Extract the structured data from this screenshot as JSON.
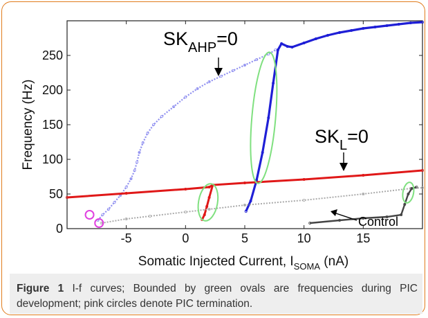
{
  "figure": {
    "label": "Figure 1",
    "caption": "I-f curves; Bounded by green ovals are frequencies during PIC development; pink circles denote PIC termination."
  },
  "chart_data": {
    "type": "scatter",
    "xlabel_main": "Somatic Injected Current, I",
    "xlabel_sub": "SOMA",
    "xlabel_unit": " (nA)",
    "ylabel": "Frequency (Hz)",
    "xlim": [
      -10,
      20
    ],
    "ylim": [
      0,
      300
    ],
    "xticks": [
      "-5",
      "0",
      "5",
      "10",
      "15"
    ],
    "yticks": [
      "0",
      "50",
      "100",
      "150",
      "200",
      "250"
    ],
    "grid": false,
    "annotations": [
      {
        "main": "SK",
        "sub": "AHP",
        "rest": "=0"
      },
      {
        "main": "SK",
        "sub": "L",
        "rest": "=0"
      },
      {
        "main": "Control",
        "sub": "",
        "rest": ""
      }
    ],
    "colors": {
      "ahp": "#1f1fd6",
      "ahp_light": "#8f8ff0",
      "skl": "#e01818",
      "skl_light": "#f2a0a0",
      "control": "#444444",
      "control_light": "#aaaaaa",
      "oval": "#7fe07f",
      "pink": "#e040e0"
    },
    "series": [
      {
        "key": "sk_ahp",
        "up": [
          [
            -7.4,
            12
          ],
          [
            -7,
            20
          ],
          [
            -6.5,
            28
          ],
          [
            -6,
            38
          ],
          [
            -5.5,
            48
          ],
          [
            -5,
            60
          ],
          [
            -4.6,
            72
          ],
          [
            -4.3,
            84
          ],
          [
            -4.1,
            96
          ],
          [
            -3.9,
            110
          ],
          [
            -3.6,
            124
          ],
          [
            -3.2,
            138
          ],
          [
            -2.7,
            150
          ],
          [
            -2,
            162
          ],
          [
            -1,
            176
          ],
          [
            0,
            190
          ],
          [
            1,
            202
          ],
          [
            2,
            212
          ],
          [
            3,
            220
          ],
          [
            4,
            228
          ],
          [
            5,
            236
          ],
          [
            6,
            244
          ],
          [
            7,
            252
          ],
          [
            7.6,
            258
          ]
        ],
        "down": [
          [
            5.1,
            25
          ],
          [
            5.5,
            40
          ],
          [
            6,
            70
          ],
          [
            6.5,
            110
          ],
          [
            7,
            160
          ],
          [
            7.4,
            210
          ],
          [
            7.8,
            258
          ],
          [
            8.1,
            267
          ],
          [
            8.6,
            263
          ],
          [
            9,
            262
          ],
          [
            10,
            268
          ],
          [
            11,
            274
          ],
          [
            12,
            279
          ],
          [
            13,
            283
          ],
          [
            14,
            286
          ],
          [
            15,
            289
          ],
          [
            16,
            291
          ],
          [
            17,
            293
          ],
          [
            18,
            295
          ],
          [
            19,
            297
          ],
          [
            20,
            298
          ]
        ]
      },
      {
        "key": "sk_l",
        "up": [
          [
            -10,
            45
          ],
          [
            -5,
            51
          ],
          [
            0,
            57
          ],
          [
            2,
            60
          ],
          [
            2.3,
            63
          ]
        ],
        "down": [
          [
            1.4,
            13
          ],
          [
            1.6,
            20
          ],
          [
            1.8,
            32
          ],
          [
            2,
            45
          ],
          [
            2.3,
            63
          ],
          [
            5,
            66
          ],
          [
            10,
            71
          ],
          [
            15,
            77
          ],
          [
            20,
            84
          ]
        ]
      },
      {
        "key": "control",
        "up": [
          [
            -7.1,
            8
          ],
          [
            -5,
            14
          ],
          [
            -3,
            18
          ],
          [
            0,
            24
          ],
          [
            2,
            28
          ],
          [
            5,
            34
          ],
          [
            10,
            41
          ],
          [
            15,
            50
          ],
          [
            19,
            58
          ],
          [
            20,
            59
          ]
        ],
        "down": [
          [
            10.5,
            8
          ],
          [
            13,
            12
          ],
          [
            15,
            15
          ],
          [
            17,
            17
          ],
          [
            18.2,
            20
          ],
          [
            18.5,
            35
          ],
          [
            18.8,
            50
          ],
          [
            19.1,
            58
          ],
          [
            19.5,
            60
          ]
        ]
      }
    ],
    "ovals": [
      {
        "cx": 1.9,
        "cy": 38,
        "rx": 0.8,
        "ry": 27,
        "rot": 10
      },
      {
        "cx": 6.6,
        "cy": 160,
        "rx": 1.0,
        "ry": 95,
        "rot": 5
      },
      {
        "cx": 18.8,
        "cy": 52,
        "rx": 0.45,
        "ry": 15,
        "rot": 10
      }
    ],
    "pink_circles": [
      {
        "x": -8.1,
        "y": 20
      },
      {
        "x": -7.3,
        "y": 8
      }
    ]
  }
}
